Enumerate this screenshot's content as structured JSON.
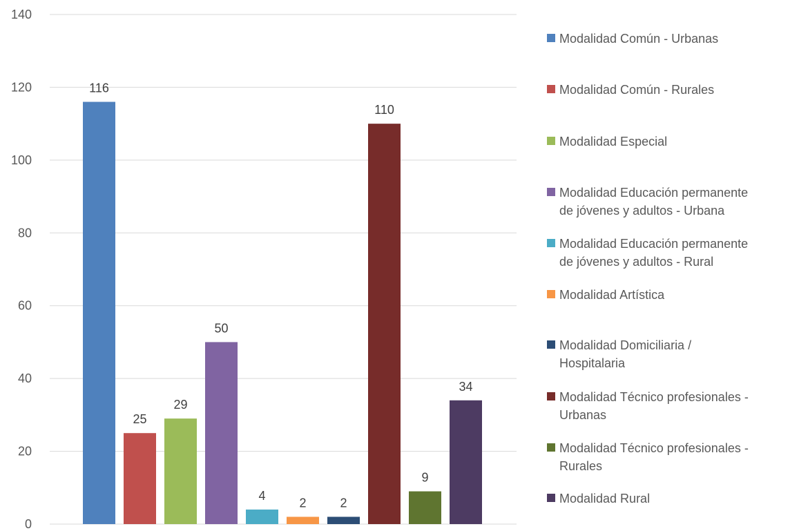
{
  "chart_data": {
    "type": "bar",
    "title": "",
    "xlabel": "",
    "ylabel": "",
    "ylim": [
      0,
      140
    ],
    "yticks": [
      0,
      20,
      40,
      60,
      80,
      100,
      120,
      140
    ],
    "grid": true,
    "legend_position": "right",
    "categories": [
      "Modalidad Común - Urbanas",
      "Modalidad Común - Rurales",
      "Modalidad Especial",
      "Modalidad Educación permanente de jóvenes y adultos - Urbana",
      "Modalidad Educación permanente de jóvenes y adultos - Rural",
      "Modalidad Artística",
      "Modalidad Domiciliaria / Hospitalaria",
      "Modalidad Técnico profesionales - Urbanas",
      "Modalidad Técnico profesionales - Rurales",
      "Modalidad Rural"
    ],
    "values": [
      116,
      25,
      29,
      50,
      4,
      2,
      2,
      110,
      9,
      34
    ],
    "colors": [
      "#4f81bd",
      "#c0504d",
      "#9bbb59",
      "#8064a2",
      "#4bacc6",
      "#f79646",
      "#2c4d75",
      "#772c2a",
      "#5f7530",
      "#4d3b62"
    ],
    "legend": [
      {
        "lines": [
          "Modalidad Común - Urbanas"
        ]
      },
      {
        "lines": [
          "Modalidad Común - Rurales"
        ]
      },
      {
        "lines": [
          "Modalidad Especial"
        ]
      },
      {
        "lines": [
          "Modalidad Educación permanente",
          "de jóvenes y adultos - Urbana"
        ]
      },
      {
        "lines": [
          "Modalidad Educación permanente",
          "de jóvenes y adultos - Rural"
        ]
      },
      {
        "lines": [
          "Modalidad Artística"
        ]
      },
      {
        "lines": [
          "Modalidad Domiciliaria /",
          "Hospitalaria"
        ]
      },
      {
        "lines": [
          "Modalidad Técnico profesionales -",
          "Urbanas"
        ]
      },
      {
        "lines": [
          "Modalidad Técnico profesionales -",
          "Rurales"
        ]
      },
      {
        "lines": [
          "Modalidad Rural"
        ]
      }
    ]
  }
}
